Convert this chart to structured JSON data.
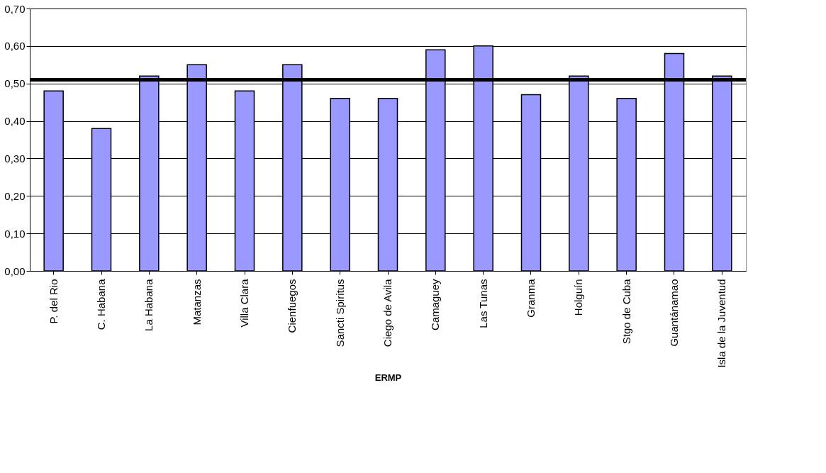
{
  "chart_data": {
    "type": "bar",
    "xlabel": "ERMP",
    "categories": [
      "P. del Rio",
      "C. Habana",
      "La Habana",
      "Matanzas",
      "Villa Clara",
      "Cienfuegos",
      "Sancti Spiritus",
      "Ciego de Avila",
      "Camaguey",
      "Las Tunas",
      "Granma",
      "Holguín",
      "Stgo de Cuba",
      "Guantánamao",
      "Isla de la Juventud"
    ],
    "values": [
      0.48,
      0.38,
      0.52,
      0.55,
      0.48,
      0.55,
      0.46,
      0.46,
      0.59,
      0.6,
      0.47,
      0.52,
      0.46,
      0.58,
      0.52
    ],
    "color": "#9999ff",
    "ylim": [
      0,
      0.7
    ],
    "yticks": [
      {
        "value": 0,
        "label": "0,00"
      },
      {
        "value": 0.1,
        "label": "0,10"
      },
      {
        "value": 0.2,
        "label": "0,20"
      },
      {
        "value": 0.3,
        "label": "0,30"
      },
      {
        "value": 0.4,
        "label": "0,40"
      },
      {
        "value": 0.5,
        "label": "0,50"
      },
      {
        "value": 0.6,
        "label": "0,60"
      },
      {
        "value": 0.7,
        "label": "0,70"
      }
    ],
    "grid": "y",
    "ref_lines": [
      {
        "axis": "y",
        "value": 0.51,
        "color": "#000000"
      }
    ]
  }
}
